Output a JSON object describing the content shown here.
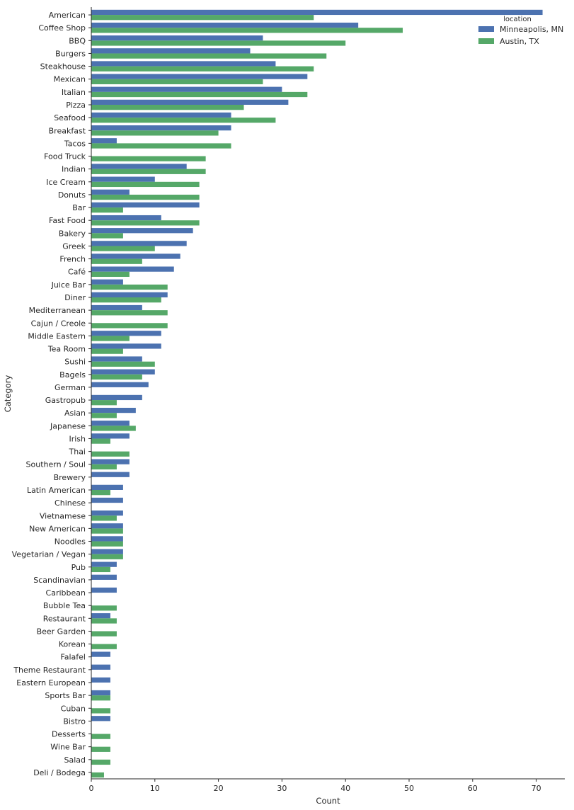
{
  "chart_data": {
    "type": "bar",
    "orientation": "horizontal",
    "title": "",
    "xlabel": "Count",
    "ylabel": "Category",
    "xlim": [
      0,
      74.5
    ],
    "xticks": [
      0,
      10,
      20,
      30,
      40,
      50,
      60,
      70
    ],
    "grid": false,
    "legend": {
      "title": "location",
      "position": "top-right"
    },
    "colors": {
      "minneapolis": "#4c72b0",
      "austin": "#55a868",
      "axis": "#262626"
    },
    "categories": [
      "American",
      "Coffee Shop",
      "BBQ",
      "Burgers",
      "Steakhouse",
      "Mexican",
      "Italian",
      "Pizza",
      "Seafood",
      "Breakfast",
      "Tacos",
      "Food Truck",
      "Indian",
      "Ice Cream",
      "Donuts",
      "Bar",
      "Fast Food",
      "Bakery",
      "Greek",
      "French",
      "Café",
      "Juice Bar",
      "Diner",
      "Mediterranean",
      "Cajun / Creole",
      "Middle Eastern",
      "Tea Room",
      "Sushi",
      "Bagels",
      "German",
      "Gastropub",
      "Asian",
      "Japanese",
      "Irish",
      "Thai",
      "Southern / Soul",
      "Brewery",
      "Latin American",
      "Chinese",
      "Vietnamese",
      "New American",
      "Noodles",
      "Vegetarian / Vegan",
      "Pub",
      "Scandinavian",
      "Caribbean",
      "Bubble Tea",
      "Restaurant",
      "Beer Garden",
      "Korean",
      "Falafel",
      "Theme Restaurant",
      "Eastern European",
      "Sports Bar",
      "Cuban",
      "Bistro",
      "Desserts",
      "Wine Bar",
      "Salad",
      "Deli / Bodega"
    ],
    "series": [
      {
        "name": "Minneapolis, MN",
        "color": "#4c72b0",
        "values": [
          71,
          42,
          27,
          25,
          29,
          34,
          30,
          31,
          22,
          22,
          4,
          0,
          15,
          10,
          6,
          17,
          11,
          16,
          15,
          14,
          13,
          5,
          12,
          8,
          0,
          11,
          11,
          8,
          10,
          9,
          8,
          7,
          6,
          6,
          0,
          6,
          6,
          5,
          5,
          5,
          5,
          5,
          5,
          4,
          4,
          4,
          0,
          3,
          0,
          0,
          3,
          3,
          3,
          3,
          0,
          3,
          0,
          0,
          0,
          0
        ]
      },
      {
        "name": "Austin, TX",
        "color": "#55a868",
        "values": [
          35,
          49,
          40,
          37,
          35,
          27,
          34,
          24,
          29,
          20,
          22,
          18,
          18,
          17,
          17,
          5,
          17,
          5,
          10,
          8,
          6,
          12,
          11,
          12,
          12,
          6,
          5,
          10,
          8,
          0,
          4,
          4,
          7,
          3,
          6,
          4,
          0,
          3,
          0,
          4,
          5,
          5,
          5,
          3,
          0,
          0,
          4,
          4,
          4,
          4,
          0,
          0,
          0,
          3,
          3,
          0,
          3,
          3,
          3,
          2
        ]
      }
    ]
  }
}
